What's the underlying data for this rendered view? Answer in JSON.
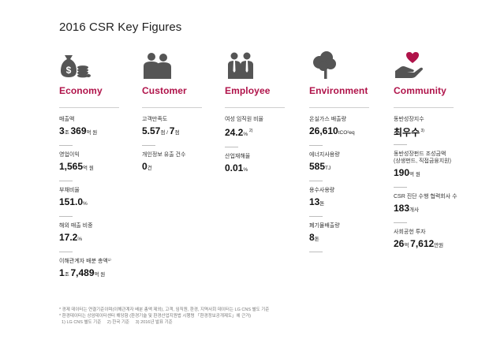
{
  "title": "2016 CSR Key Figures",
  "columns": [
    {
      "category": "Economy",
      "icon": "money-bag-coins-icon",
      "metrics": [
        {
          "label": "매출액",
          "parts": [
            [
              "3",
              "b"
            ],
            [
              "조 ",
              "s"
            ],
            [
              "369",
              "b"
            ],
            [
              "억 원",
              "s"
            ]
          ]
        },
        {
          "label": "영업이익",
          "parts": [
            [
              "1,565",
              "b"
            ],
            [
              "억 원",
              "s"
            ]
          ]
        },
        {
          "label": "부채비율",
          "parts": [
            [
              "151.0",
              "b"
            ],
            [
              "%",
              "s"
            ]
          ]
        },
        {
          "label": "해외 매출 비중",
          "parts": [
            [
              "17.2",
              "b"
            ],
            [
              "%",
              "s"
            ]
          ]
        },
        {
          "label": "이해관계자 배분 총액¹⁾",
          "parts": [
            [
              "1",
              "b"
            ],
            [
              "조 ",
              "s"
            ],
            [
              "7,489",
              "b"
            ],
            [
              "억 원",
              "s"
            ]
          ]
        }
      ]
    },
    {
      "category": "Customer",
      "icon": "customers-icon",
      "metrics": [
        {
          "label": "고객만족도",
          "parts": [
            [
              "5.57",
              "b"
            ],
            [
              "점 / ",
              "s"
            ],
            [
              "7",
              "b"
            ],
            [
              "점",
              "s"
            ]
          ]
        },
        {
          "label": "개인정보 유출 건수",
          "parts": [
            [
              "0",
              "b"
            ],
            [
              "건",
              "s"
            ]
          ]
        }
      ]
    },
    {
      "category": "Employee",
      "icon": "employees-icon",
      "metrics": [
        {
          "label": "여성 임직원 비율",
          "parts": [
            [
              "24.2",
              "b"
            ],
            [
              "% ",
              "s"
            ],
            [
              "2)",
              "sup"
            ]
          ]
        },
        {
          "label": "산업재해율",
          "parts": [
            [
              "0.01",
              "b"
            ],
            [
              "%",
              "s"
            ]
          ]
        }
      ]
    },
    {
      "category": "Environment",
      "icon": "tree-icon",
      "metrics": [
        {
          "label": "온실가스 배출량",
          "parts": [
            [
              "26,610",
              "b"
            ],
            [
              "tCO²eq",
              "s"
            ]
          ]
        },
        {
          "label": "에너지사용량",
          "parts": [
            [
              "585",
              "b"
            ],
            [
              "TJ",
              "s"
            ]
          ]
        },
        {
          "label": "용수사용량",
          "parts": [
            [
              "13",
              "b"
            ],
            [
              "톤",
              "s"
            ]
          ]
        },
        {
          "label": "폐기물배출량",
          "parts": [
            [
              "8",
              "b"
            ],
            [
              "톤",
              "s"
            ]
          ]
        }
      ]
    },
    {
      "category": "Community",
      "icon": "heart-hand-icon",
      "metrics": [
        {
          "label": "동반성장지수",
          "parts": [
            [
              "최우수",
              "b"
            ],
            [
              " 3)",
              "sup"
            ]
          ]
        },
        {
          "label": "동반성장펀드 조성금액\n(상생펀드, 직접금융지원)",
          "parts": [
            [
              "190",
              "b"
            ],
            [
              "억 원",
              "s"
            ]
          ]
        },
        {
          "label": "CSR 진단 수행 협력회사 수",
          "parts": [
            [
              "183",
              "b"
            ],
            [
              "개사",
              "s"
            ]
          ]
        },
        {
          "label": "사회공헌 투자",
          "parts": [
            [
              "26",
              "b"
            ],
            [
              "억 ",
              "s"
            ],
            [
              "7,612",
              "b"
            ],
            [
              "만원",
              "s"
            ]
          ]
        }
      ]
    }
  ],
  "notes": [
    "* 경제 데이터는 연결기준이며(이해관계자 배분 총액 제외), 고객, 임직원, 환경, 지역사회 데이터는 LG CNS 별도 기준",
    "* 환경데이터는 상암데이터센터 해당함 (환경기술 및 환경산업지원법 시행령 「환경정보공개제도」에 근거)",
    "  1) LG CNS 별도 기준     2) 한국 기준     3) 2016년 발표 기준"
  ],
  "colors": {
    "accent": "#b0134a",
    "icon": "#555555"
  }
}
